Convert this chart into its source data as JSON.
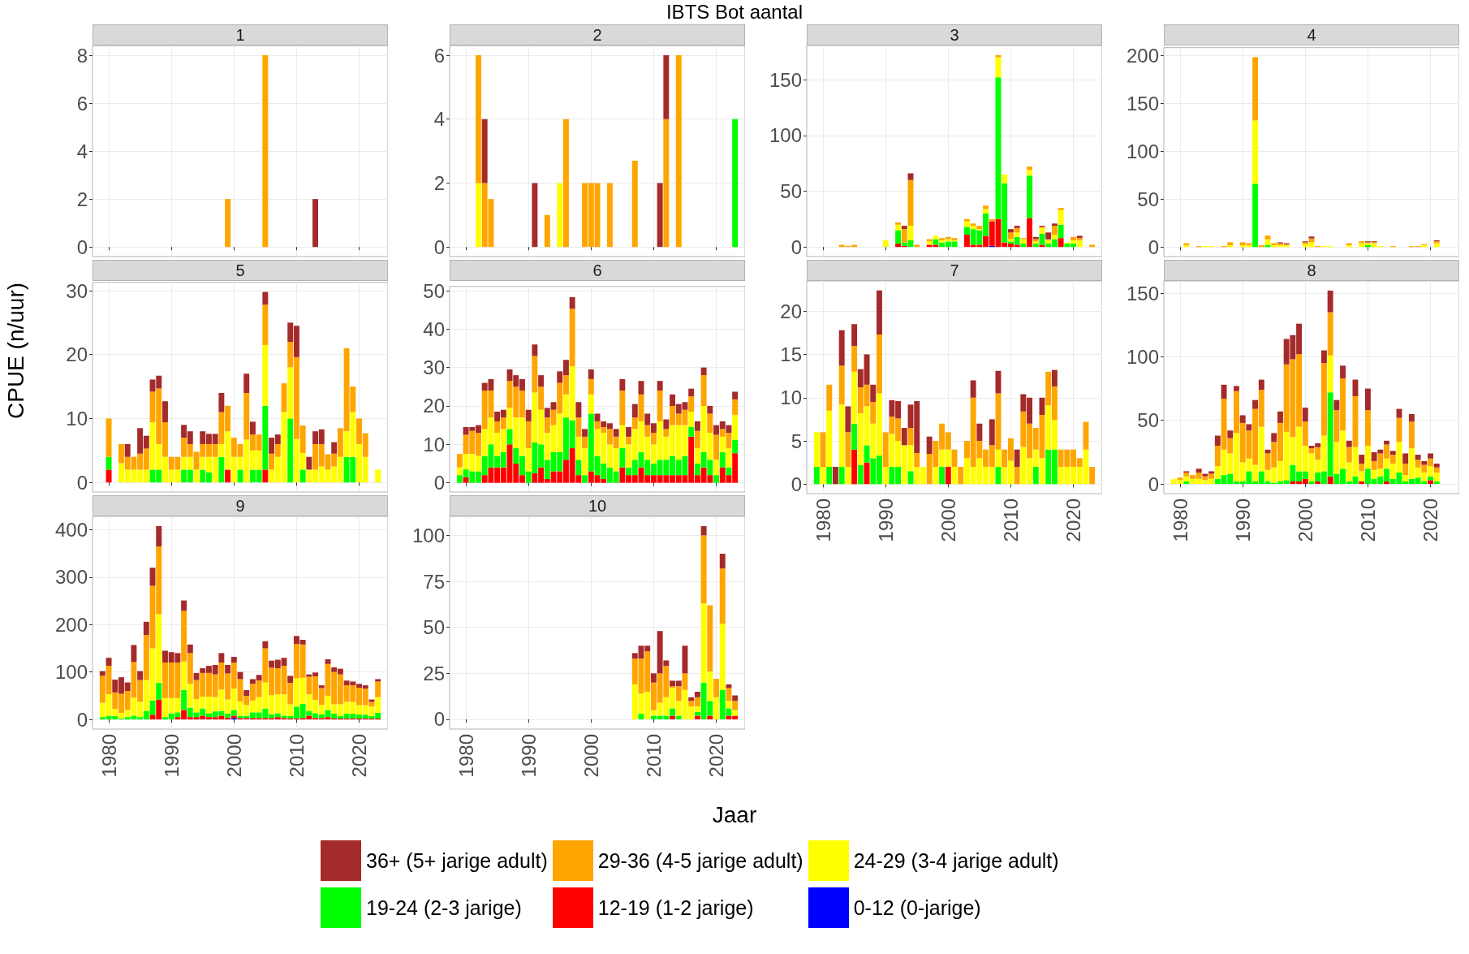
{
  "chart_data": [
    {
      "type": "bar",
      "title": "1",
      "stacked": true,
      "grid": true,
      "tick_labels": "y",
      "xlim": [
        1977.4,
        2024.6
      ],
      "xticks": [
        1980,
        1990,
        2000,
        2010,
        2020
      ],
      "ylim": [
        -0.4,
        8.4
      ],
      "yticks": [
        0,
        2,
        4,
        6,
        8
      ],
      "x": [
        1999,
        2005,
        2013
      ],
      "series": [
        {
          "color": "#ffa500",
          "values": [
            2,
            8,
            null
          ]
        },
        {
          "color": "#a52a2a",
          "values": [
            null,
            null,
            2
          ]
        }
      ]
    },
    {
      "type": "bar",
      "title": "2",
      "annotations": [
        "IBTS Bot aantal"
      ],
      "stacked": true,
      "grid": true,
      "tick_labels": "y",
      "xlim": [
        1977.4,
        2024.6
      ],
      "xticks": [
        1980,
        1990,
        2000,
        2010,
        2020
      ],
      "ylim": [
        -0.3,
        6.3
      ],
      "yticks": [
        0,
        2,
        4,
        6
      ],
      "x": [
        1982,
        1983,
        1984,
        1991,
        1993,
        1995,
        1996,
        1999,
        2000,
        2001,
        2003,
        2007,
        2011,
        2012,
        2014,
        2023
      ],
      "series": [
        {
          "color": "#00ff00",
          "values": [
            null,
            null,
            null,
            null,
            null,
            null,
            null,
            null,
            null,
            null,
            null,
            null,
            null,
            null,
            null,
            4
          ]
        },
        {
          "color": "#ffff00",
          "values": [
            2,
            null,
            null,
            null,
            null,
            2,
            null,
            null,
            null,
            null,
            null,
            null,
            null,
            null,
            null,
            null
          ]
        },
        {
          "color": "#ffa500",
          "values": [
            4,
            2,
            1.5,
            null,
            1,
            null,
            4,
            2,
            2,
            2,
            2,
            2.7,
            null,
            4,
            6,
            null
          ]
        },
        {
          "color": "#a52a2a",
          "values": [
            null,
            2,
            null,
            2,
            null,
            null,
            null,
            null,
            null,
            null,
            null,
            null,
            2,
            2,
            null,
            null
          ]
        }
      ]
    },
    {
      "type": "bar",
      "title": "3",
      "stacked": true,
      "grid": true,
      "tick_labels": "y",
      "xlim": [
        1977.4,
        2024.6
      ],
      "xticks": [
        1980,
        1990,
        2000,
        2010,
        2020
      ],
      "ylim": [
        -8.6,
        180.6
      ],
      "yticks": [
        0,
        50,
        100,
        150
      ],
      "x": [
        1983,
        1984,
        1985,
        1990,
        1992,
        1993,
        1994,
        1995,
        1997,
        1998,
        1999,
        2000,
        2001,
        2003,
        2004,
        2005,
        2006,
        2007,
        2008,
        2009,
        2010,
        2011,
        2012,
        2013,
        2014,
        2015,
        2016,
        2017,
        2018,
        2019,
        2020,
        2021,
        2023
      ],
      "series": [
        {
          "color": "#0000ff",
          "values": [
            null,
            null,
            null,
            null,
            null,
            null,
            null,
            null,
            null,
            null,
            null,
            null,
            null,
            null,
            null,
            null,
            null,
            1,
            null,
            null,
            null,
            null,
            null,
            null,
            null,
            null,
            null,
            null,
            null,
            null,
            null,
            null,
            null
          ]
        },
        {
          "color": "#ff0000",
          "values": [
            null,
            null,
            null,
            null,
            3,
            1,
            null,
            null,
            2,
            2,
            null,
            null,
            null,
            11,
            2,
            2,
            10,
            22,
            25,
            4,
            3,
            2,
            null,
            26,
            null,
            2,
            null,
            null,
            8,
            null,
            null,
            null,
            null
          ]
        },
        {
          "color": "#00ff00",
          "values": [
            null,
            null,
            null,
            null,
            12,
            3,
            6,
            null,
            null,
            5,
            4,
            5,
            5,
            7,
            14,
            13,
            20,
            null,
            127,
            53,
            2,
            7,
            3,
            38,
            3,
            10,
            3,
            7,
            12,
            3,
            3,
            null,
            null
          ]
        },
        {
          "color": "#ffff00",
          "values": [
            null,
            null,
            null,
            6,
            5,
            null,
            13,
            null,
            3,
            3,
            2,
            2,
            1,
            5,
            3,
            1,
            4,
            null,
            18,
            8,
            2,
            4,
            4,
            5,
            2,
            5,
            3,
            4,
            13,
            1,
            3,
            6,
            null
          ]
        },
        {
          "color": "#ffa500",
          "values": [
            2,
            1,
            2,
            null,
            2,
            12,
            41,
            2,
            2,
            null,
            2,
            2,
            2,
            2,
            2,
            3,
            3,
            2,
            2,
            null,
            6,
            4,
            1,
            3,
            2,
            1,
            1,
            8,
            2,
            null,
            3,
            2,
            2
          ]
        },
        {
          "color": "#a52a2a",
          "values": [
            null,
            null,
            null,
            null,
            null,
            3,
            6,
            null,
            null,
            null,
            null,
            null,
            null,
            null,
            null,
            null,
            null,
            null,
            null,
            null,
            3,
            2,
            null,
            null,
            2,
            1,
            6,
            2,
            null,
            null,
            null,
            2,
            null
          ]
        }
      ]
    },
    {
      "type": "bar",
      "title": "4",
      "stacked": true,
      "grid": true,
      "tick_labels": "y",
      "xlim": [
        1977.4,
        2024.6
      ],
      "xticks": [
        1980,
        1990,
        2000,
        2010,
        2020
      ],
      "ylim": [
        -9.9,
        207.9
      ],
      "yticks": [
        0,
        50,
        100,
        150,
        200
      ],
      "x": [
        1981,
        1983,
        1984,
        1985,
        1987,
        1988,
        1990,
        1991,
        1992,
        1993,
        1994,
        1995,
        1996,
        1997,
        2000,
        2001,
        2002,
        2003,
        2004,
        2007,
        2009,
        2010,
        2011,
        2012,
        2014,
        2017,
        2018,
        2019,
        2021
      ],
      "series": [
        {
          "color": "#00ff00",
          "values": [
            null,
            null,
            null,
            null,
            null,
            null,
            null,
            null,
            66,
            null,
            2,
            null,
            null,
            null,
            null,
            null,
            null,
            null,
            null,
            null,
            null,
            2,
            null,
            null,
            null,
            null,
            null,
            null,
            null
          ]
        },
        {
          "color": "#ffff00",
          "values": [
            2,
            null,
            1,
            1,
            null,
            2,
            2,
            2,
            66,
            null,
            6,
            2,
            2,
            2,
            3,
            5,
            null,
            1,
            1,
            2,
            4,
            2,
            4,
            1,
            null,
            null,
            null,
            2,
            4
          ]
        },
        {
          "color": "#ffa500",
          "values": [
            2,
            1,
            null,
            null,
            1,
            3,
            3,
            2,
            66,
            2,
            4,
            2,
            2,
            1,
            2,
            4,
            1,
            null,
            null,
            2,
            2,
            1,
            1,
            null,
            1,
            1,
            1,
            1,
            2
          ]
        },
        {
          "color": "#a52a2a",
          "values": [
            null,
            null,
            null,
            null,
            null,
            null,
            null,
            null,
            null,
            null,
            null,
            null,
            1,
            1,
            1,
            2,
            null,
            null,
            null,
            null,
            null,
            1,
            1,
            null,
            null,
            null,
            null,
            null,
            1
          ]
        }
      ]
    },
    {
      "type": "bar",
      "title": "5",
      "ylabel": "CPUE (n/uur)",
      "stacked": true,
      "grid": true,
      "tick_labels": "y",
      "xlim": [
        1977.4,
        2024.6
      ],
      "xticks": [
        1980,
        1990,
        2000,
        2010,
        2020
      ],
      "ylim": [
        -1.5,
        31.3
      ],
      "yticks": [
        0,
        10,
        20,
        30
      ],
      "x": [
        1980,
        1981,
        1982,
        1983,
        1984,
        1985,
        1986,
        1987,
        1988,
        1989,
        1990,
        1991,
        1992,
        1993,
        1994,
        1995,
        1996,
        1997,
        1998,
        1999,
        2000,
        2001,
        2002,
        2003,
        2004,
        2005,
        2006,
        2007,
        2008,
        2009,
        2010,
        2011,
        2012,
        2013,
        2014,
        2015,
        2016,
        2017,
        2018,
        2019,
        2020,
        2021,
        2022,
        2023
      ],
      "series": [
        {
          "color": "#ff0000",
          "values": [
            2,
            null,
            null,
            null,
            null,
            null,
            null,
            null,
            null,
            null,
            null,
            null,
            null,
            null,
            null,
            null,
            null,
            null,
            null,
            2,
            null,
            null,
            null,
            null,
            null,
            2,
            null,
            null,
            null,
            null,
            null,
            null,
            null,
            null,
            null,
            null,
            null,
            null,
            null,
            null,
            null,
            null,
            null,
            null
          ]
        },
        {
          "color": "#00ff00",
          "values": [
            2,
            null,
            null,
            null,
            null,
            null,
            null,
            2,
            2,
            null,
            null,
            null,
            2,
            2,
            null,
            2,
            1.6,
            null,
            4,
            null,
            null,
            2,
            null,
            2,
            2,
            10,
            null,
            null,
            null,
            10,
            null,
            2,
            null,
            null,
            null,
            null,
            null,
            null,
            4,
            4,
            null,
            null,
            null,
            null
          ]
        },
        {
          "color": "#ffff00",
          "values": [
            null,
            null,
            3,
            2,
            2,
            2,
            2,
            7.4,
            4,
            4,
            2,
            2,
            2,
            2,
            2,
            2,
            2.4,
            4,
            2,
            6,
            4,
            2,
            6.7,
            3,
            3,
            9.5,
            2,
            4,
            11,
            8,
            6.8,
            2.6,
            2,
            2,
            2.5,
            2,
            2.5,
            4,
            4,
            7,
            6,
            4,
            null,
            2
          ]
        },
        {
          "color": "#ffa500",
          "values": [
            6,
            null,
            3,
            2,
            2,
            2.5,
            3.3,
            4.8,
            8.7,
            5.4,
            2,
            2,
            3,
            2,
            2.8,
            2,
            2,
            2,
            5,
            4,
            3,
            2,
            7.3,
            2.5,
            2.5,
            6.3,
            2.5,
            2,
            4.5,
            4,
            12.8,
            4.3,
            null,
            4,
            3.5,
            2.4,
            2,
            4.5,
            13,
            4,
            4,
            3.7,
            null,
            null
          ]
        },
        {
          "color": "#a52a2a",
          "values": [
            null,
            null,
            null,
            2,
            null,
            4,
            2,
            1.9,
            2,
            3.3,
            null,
            null,
            2,
            2,
            null,
            2,
            1.6,
            1.6,
            3,
            null,
            null,
            null,
            3,
            2,
            null,
            2,
            2.5,
            1.5,
            null,
            3,
            4.9,
            null,
            2,
            2,
            2.3,
            null,
            1.8,
            null,
            null,
            null,
            null,
            null,
            null,
            null
          ]
        }
      ]
    },
    {
      "type": "bar",
      "title": "6",
      "stacked": true,
      "grid": true,
      "tick_labels": "y",
      "xlim": [
        1977.4,
        2024.6
      ],
      "xticks": [
        1980,
        1990,
        2000,
        2010,
        2020
      ],
      "ylim": [
        -2.4,
        51.1
      ],
      "yticks": [
        0,
        10,
        20,
        30,
        40,
        50
      ],
      "x": [
        1979,
        1980,
        1981,
        1982,
        1983,
        1984,
        1985,
        1986,
        1987,
        1988,
        1989,
        1990,
        1991,
        1992,
        1993,
        1994,
        1995,
        1996,
        1997,
        1998,
        1999,
        2000,
        2001,
        2002,
        2003,
        2004,
        2005,
        2006,
        2007,
        2008,
        2009,
        2010,
        2011,
        2012,
        2013,
        2014,
        2015,
        2016,
        2017,
        2018,
        2019,
        2020,
        2021,
        2022,
        2023
      ],
      "series": [
        {
          "color": "#ff0000",
          "values": [
            null,
            1.5,
            null,
            null,
            2,
            4,
            4,
            4,
            10,
            5,
            2,
            null,
            2.5,
            4,
            1,
            3,
            3,
            6,
            9,
            2,
            null,
            3,
            2,
            1,
            null,
            null,
            4,
            2,
            2,
            4,
            2,
            2,
            2,
            2,
            2,
            2,
            2,
            12,
            2,
            4,
            2,
            null,
            4,
            2,
            7.7
          ]
        },
        {
          "color": "#00ff00",
          "values": [
            2,
            2,
            3,
            3,
            5,
            6,
            3,
            4,
            4,
            4,
            5,
            3,
            8,
            6,
            5,
            5,
            5,
            11,
            7.3,
            4,
            2,
            15,
            5,
            4,
            4,
            3,
            5,
            2,
            4,
            4,
            4,
            3,
            4,
            4,
            5,
            4,
            5,
            2.5,
            3,
            4,
            4,
            2,
            4,
            2,
            3.5
          ]
        },
        {
          "color": "#ffff00",
          "values": [
            2,
            4,
            4.5,
            4,
            7,
            7,
            6,
            6,
            5.5,
            8,
            10,
            6,
            13,
            9,
            7,
            7,
            10,
            6,
            14,
            6,
            7,
            5,
            7,
            8,
            6,
            6,
            6,
            6,
            8,
            8,
            6,
            5,
            10,
            6,
            8,
            9,
            8,
            4,
            4,
            12,
            7,
            4,
            4,
            5,
            6.5
          ]
        },
        {
          "color": "#ffa500",
          "values": [
            3.5,
            5,
            6,
            6,
            10,
            7,
            3,
            3,
            7,
            8,
            7,
            7,
            9.5,
            6,
            4,
            4,
            8,
            5,
            15,
            5,
            3,
            4,
            2,
            1.5,
            4,
            3,
            9,
            2,
            3,
            7,
            3,
            3,
            8,
            2,
            5,
            3,
            4,
            4,
            4.5,
            8,
            5,
            6.5,
            2,
            4,
            4
          ]
        },
        {
          "color": "#a52a2a",
          "values": [
            null,
            2,
            1,
            2,
            2,
            3,
            2.5,
            2,
            3,
            3,
            3,
            3,
            3,
            3,
            2.5,
            2,
            3,
            4,
            3,
            4,
            2,
            2.5,
            2,
            1.5,
            1.5,
            2,
            3,
            2.5,
            3.5,
            3.5,
            3,
            2.5,
            2.5,
            2.5,
            3,
            2.5,
            2,
            2,
            2.5,
            2,
            2,
            2.5,
            2,
            2,
            2
          ]
        }
      ]
    },
    {
      "type": "bar",
      "title": "7",
      "stacked": true,
      "grid": true,
      "xlim": [
        1977.4,
        2024.6
      ],
      "xticks": [
        1980,
        1990,
        2000,
        2010,
        2020
      ],
      "ylim": [
        -1.1,
        23.5
      ],
      "yticks": [
        0,
        5,
        10,
        15,
        20
      ],
      "x": [
        1979,
        1980,
        1981,
        1982,
        1983,
        1984,
        1985,
        1986,
        1987,
        1988,
        1989,
        1990,
        1991,
        1992,
        1993,
        1994,
        1995,
        1996,
        1997,
        1998,
        1999,
        2000,
        2001,
        2002,
        2003,
        2004,
        2005,
        2006,
        2007,
        2008,
        2009,
        2010,
        2011,
        2012,
        2013,
        2014,
        2015,
        2016,
        2017,
        2018,
        2019,
        2020,
        2021,
        2022,
        2023
      ],
      "series": [
        {
          "color": "#ff0000",
          "values": [
            null,
            null,
            null,
            null,
            null,
            null,
            4,
            null,
            2.5,
            null,
            null,
            null,
            null,
            null,
            null,
            null,
            null,
            null,
            null,
            null,
            null,
            2,
            null,
            null,
            null,
            null,
            null,
            null,
            null,
            null,
            null,
            null,
            null,
            null,
            null,
            null,
            null,
            null,
            null,
            null,
            null,
            null,
            null,
            null,
            null
          ]
        },
        {
          "color": "#00ff00",
          "values": [
            2,
            null,
            2,
            null,
            2,
            null,
            3,
            2.2,
            2,
            3,
            3.3,
            null,
            2,
            2,
            null,
            1.5,
            null,
            null,
            null,
            null,
            2,
            null,
            null,
            null,
            null,
            null,
            null,
            null,
            null,
            2,
            null,
            null,
            null,
            null,
            null,
            2,
            null,
            4,
            4,
            null,
            null,
            null,
            null,
            null,
            null
          ]
        },
        {
          "color": "#ffff00",
          "values": [
            4,
            2,
            6.5,
            null,
            7.2,
            2,
            6,
            6,
            4.5,
            4,
            7.2,
            2,
            3.8,
            3,
            4.5,
            3,
            2,
            2,
            null,
            2,
            2,
            2,
            2,
            null,
            3,
            2,
            3,
            2,
            2,
            2,
            2,
            2.7,
            null,
            4.3,
            3,
            2,
            3,
            5.1,
            3.4,
            2,
            2,
            2,
            2,
            4,
            null
          ]
        },
        {
          "color": "#ffa500",
          "values": [
            null,
            4,
            3,
            null,
            4.5,
            4,
            3,
            3,
            2.5,
            2.5,
            6.8,
            4,
            2,
            2.6,
            null,
            2,
            1.6,
            null,
            3.5,
            3,
            3,
            2,
            2,
            2,
            2,
            8,
            2,
            2,
            2.5,
            6.5,
            2,
            2.6,
            2,
            4.1,
            4,
            2.5,
            5,
            3.9,
            3.9,
            2,
            2,
            2,
            1,
            3.2,
            2
          ]
        },
        {
          "color": "#a52a2a",
          "values": [
            null,
            null,
            null,
            2,
            4.1,
            3,
            2.5,
            2.1,
            3.5,
            2,
            5.1,
            null,
            1.9,
            2,
            2,
            2.7,
            6,
            null,
            2,
            null,
            null,
            null,
            null,
            null,
            null,
            2,
            2,
            null,
            3,
            2.6,
            null,
            null,
            2,
            2,
            3,
            null,
            2,
            null,
            1.9,
            null,
            null,
            null,
            null,
            null,
            null
          ]
        }
      ]
    },
    {
      "type": "bar",
      "title": "8",
      "stacked": true,
      "grid": true,
      "xlim": [
        1977.4,
        2024.6
      ],
      "xticks": [
        1980,
        1990,
        2000,
        2010,
        2020
      ],
      "ylim": [
        -7.6,
        159.6
      ],
      "yticks": [
        0,
        50,
        100,
        150
      ],
      "x": [
        1979,
        1980,
        1981,
        1982,
        1983,
        1984,
        1985,
        1986,
        1987,
        1988,
        1989,
        1990,
        1991,
        1992,
        1993,
        1994,
        1995,
        1996,
        1997,
        1998,
        1999,
        2000,
        2001,
        2002,
        2003,
        2004,
        2005,
        2006,
        2007,
        2008,
        2009,
        2010,
        2011,
        2012,
        2013,
        2014,
        2015,
        2016,
        2017,
        2018,
        2019,
        2020,
        2021
      ],
      "series": [
        {
          "color": "#ff0000",
          "values": [
            null,
            null,
            null,
            null,
            null,
            null,
            null,
            null,
            null,
            null,
            null,
            null,
            null,
            null,
            null,
            null,
            null,
            null,
            null,
            2,
            2,
            4,
            null,
            2,
            null,
            6,
            null,
            null,
            null,
            null,
            2,
            null,
            null,
            null,
            2,
            null,
            null,
            null,
            null,
            null,
            null,
            3,
            null
          ]
        },
        {
          "color": "#00ff00",
          "values": [
            null,
            null,
            2,
            null,
            null,
            null,
            null,
            4,
            7,
            8,
            2,
            2,
            10,
            2,
            10,
            2,
            1,
            2,
            3,
            13,
            8,
            6,
            2,
            7,
            10,
            66,
            8,
            12,
            2,
            6,
            null,
            12,
            4,
            6,
            10,
            4,
            9,
            2,
            4,
            5,
            2,
            3,
            2
          ]
        },
        {
          "color": "#ffff00",
          "values": [
            4,
            3,
            4,
            4,
            4,
            3,
            4,
            10,
            20,
            16,
            38,
            15,
            10,
            13,
            35,
            9,
            12,
            16,
            38,
            22,
            35,
            20,
            22,
            10,
            28,
            29,
            25,
            30,
            15,
            23,
            8,
            18,
            7,
            6,
            8,
            12,
            24,
            5,
            24,
            8,
            7,
            8,
            7
          ]
        },
        {
          "color": "#ffa500",
          "values": [
            null,
            2,
            3,
            3,
            5,
            3,
            4,
            16,
            40,
            12,
            33,
            31,
            22,
            44,
            29,
            13,
            20,
            30,
            53,
            61,
            57,
            19,
            4,
            10,
            57,
            34,
            25,
            41,
            12,
            40,
            6,
            28,
            7,
            12,
            11,
            7,
            19,
            9,
            21,
            6,
            6,
            6,
            4
          ]
        },
        {
          "color": "#a52a2a",
          "values": [
            null,
            null,
            1,
            null,
            3,
            2,
            2,
            8,
            11,
            6,
            4,
            6,
            5,
            7,
            8,
            3,
            7,
            9,
            20,
            19,
            24,
            11,
            2,
            3,
            10,
            17,
            8,
            10,
            5,
            13,
            7,
            17,
            7,
            3,
            3,
            3,
            7,
            8,
            6,
            4,
            3,
            4,
            3
          ]
        }
      ]
    },
    {
      "type": "bar",
      "title": "9",
      "stacked": true,
      "grid": true,
      "legend": "bottom",
      "xlim": [
        1977.4,
        2024.6
      ],
      "xticks": [
        1980,
        1990,
        2000,
        2010,
        2020
      ],
      "ylim": [
        -20.4,
        428.4
      ],
      "yticks": [
        0,
        100,
        200,
        300,
        400
      ],
      "x": [
        1979,
        1980,
        1981,
        1982,
        1983,
        1984,
        1985,
        1986,
        1987,
        1988,
        1989,
        1990,
        1991,
        1992,
        1993,
        1994,
        1995,
        1996,
        1997,
        1998,
        1999,
        2000,
        2001,
        2002,
        2003,
        2004,
        2005,
        2006,
        2007,
        2008,
        2009,
        2010,
        2011,
        2012,
        2013,
        2014,
        2015,
        2016,
        2017,
        2018,
        2019,
        2020,
        2021,
        2022,
        2023
      ],
      "series": [
        {
          "name": "0-12 (0-jarige)",
          "color": "#0000ff",
          "values": [
            null,
            null,
            null,
            null,
            null,
            null,
            null,
            null,
            null,
            null,
            null,
            null,
            null,
            null,
            null,
            null,
            null,
            null,
            null,
            null,
            null,
            3,
            null,
            null,
            null,
            null,
            null,
            null,
            null,
            null,
            null,
            null,
            null,
            null,
            null,
            null,
            null,
            null,
            null,
            null,
            null,
            null,
            null,
            null,
            null
          ]
        },
        {
          "name": "12-19 (1-2 jarige)",
          "color": "#ff0000",
          "values": [
            null,
            null,
            null,
            null,
            null,
            null,
            null,
            null,
            10,
            42,
            null,
            null,
            5,
            20,
            5,
            5,
            8,
            5,
            5,
            8,
            4,
            5,
            3,
            3,
            3,
            3,
            3,
            3,
            5,
            3,
            2,
            2,
            3,
            8,
            3,
            3,
            5,
            2,
            2,
            2,
            2,
            2,
            2,
            2,
            2
          ]
        },
        {
          "name": "19-24 (2-3 jarige)",
          "color": "#00ff00",
          "values": [
            5,
            8,
            7,
            2,
            5,
            8,
            5,
            18,
            30,
            35,
            5,
            12,
            10,
            42,
            20,
            10,
            15,
            8,
            12,
            10,
            8,
            12,
            5,
            5,
            12,
            12,
            20,
            8,
            8,
            5,
            5,
            25,
            30,
            10,
            10,
            8,
            15,
            10,
            5,
            10,
            10,
            8,
            8,
            5,
            12
          ]
        },
        {
          "name": "24-29 (3-4 jarige adult)",
          "color": "#ffff00",
          "values": [
            30,
            45,
            15,
            12,
            15,
            38,
            32,
            65,
            110,
            145,
            40,
            33,
            30,
            60,
            50,
            28,
            25,
            35,
            30,
            45,
            30,
            45,
            30,
            22,
            25,
            32,
            55,
            40,
            40,
            45,
            25,
            60,
            55,
            35,
            28,
            20,
            30,
            20,
            25,
            25,
            25,
            20,
            20,
            20,
            33
          ]
        },
        {
          "name": "29-36 (4-5 jarige adult)",
          "color": "#ffa500",
          "values": [
            57,
            60,
            35,
            40,
            40,
            75,
            46,
            95,
            132,
            143,
            75,
            75,
            75,
            107,
            65,
            40,
            50,
            50,
            48,
            57,
            55,
            55,
            47,
            20,
            35,
            35,
            72,
            58,
            55,
            60,
            45,
            72,
            70,
            37,
            50,
            35,
            67,
            68,
            63,
            35,
            35,
            37,
            35,
            10,
            33
          ]
        },
        {
          "name": "36+ (5+ jarige adult)",
          "color": "#a52a2a",
          "values": [
            10,
            17,
            27,
            35,
            18,
            36,
            19,
            28,
            38,
            43,
            25,
            22,
            20,
            22,
            18,
            15,
            10,
            15,
            20,
            20,
            18,
            12,
            15,
            12,
            10,
            12,
            15,
            15,
            18,
            17,
            15,
            17,
            10,
            5,
            8,
            6,
            10,
            10,
            12,
            10,
            8,
            8,
            7,
            5,
            5
          ]
        }
      ]
    },
    {
      "type": "bar",
      "title": "10",
      "xlabel": "Jaar",
      "stacked": true,
      "grid": true,
      "xlim": [
        1977.4,
        2024.6
      ],
      "xticks": [
        1980,
        1990,
        2000,
        2010,
        2020
      ],
      "ylim": [
        -5.3,
        110.3
      ],
      "yticks": [
        0,
        25,
        50,
        75,
        100
      ],
      "x": [
        2007,
        2008,
        2009,
        2010,
        2011,
        2012,
        2013,
        2014,
        2015,
        2016,
        2017,
        2018,
        2019,
        2020,
        2021,
        2022,
        2023
      ],
      "series": [
        {
          "color": "#ff0000",
          "values": [
            null,
            null,
            null,
            null,
            null,
            null,
            2,
            null,
            null,
            null,
            2,
            null,
            2,
            null,
            null,
            2,
            2
          ]
        },
        {
          "color": "#00ff00",
          "values": [
            null,
            3,
            null,
            2,
            2,
            2,
            4,
            2,
            null,
            null,
            2,
            20,
            8,
            null,
            16,
            4,
            null
          ]
        },
        {
          "color": "#ffff00",
          "values": [
            19,
            11,
            15,
            3,
            7,
            10,
            11,
            8,
            16,
            7,
            3,
            43,
            16,
            12,
            36,
            4,
            3
          ]
        },
        {
          "color": "#ffa500",
          "values": [
            14,
            19,
            22,
            15,
            16,
            17,
            1,
            8,
            9,
            3,
            5,
            37,
            36,
            10,
            30,
            7,
            5
          ]
        },
        {
          "color": "#a52a2a",
          "values": [
            3,
            7,
            3,
            5,
            23,
            3,
            3,
            3,
            15,
            2,
            3,
            5,
            null,
            null,
            8,
            2,
            3
          ]
        }
      ]
    }
  ]
}
